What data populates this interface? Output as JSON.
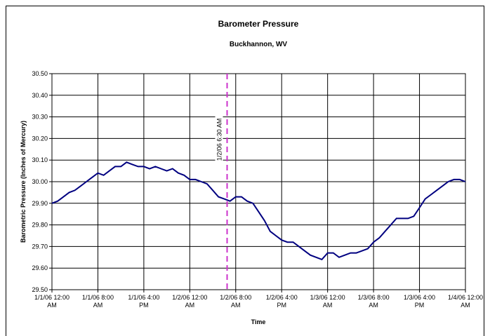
{
  "chart_data": {
    "type": "line",
    "title": "Barometer Pressure",
    "subtitle": "Buckhannon, WV",
    "x_label": "Time",
    "y_label": "Barometric Pressure (Inches of Mercury)",
    "grid": true,
    "xlim": [
      "2006-01-01T00:00",
      "2006-01-04T00:00"
    ],
    "xticks": [
      {
        "value": "2006-01-01T00:00",
        "label": "1/1/06 12:00 AM"
      },
      {
        "value": "2006-01-01T08:00",
        "label": "1/1/06 8:00 AM"
      },
      {
        "value": "2006-01-01T16:00",
        "label": "1/1/06 4:00 PM"
      },
      {
        "value": "2006-01-02T00:00",
        "label": "1/2/06 12:00 AM"
      },
      {
        "value": "2006-01-02T08:00",
        "label": "1/2/06 8:00 AM"
      },
      {
        "value": "2006-01-02T16:00",
        "label": "1/2/06 4:00 PM"
      },
      {
        "value": "2006-01-03T00:00",
        "label": "1/3/06 12:00 AM"
      },
      {
        "value": "2006-01-03T08:00",
        "label": "1/3/06 8:00 AM"
      },
      {
        "value": "2006-01-03T16:00",
        "label": "1/3/06 4:00 PM"
      },
      {
        "value": "2006-01-04T00:00",
        "label": "1/4/06 12:00 AM"
      }
    ],
    "ylim": [
      29.5,
      30.5
    ],
    "yticks": [
      {
        "value": 29.5,
        "label": "29.50"
      },
      {
        "value": 29.6,
        "label": "29.60"
      },
      {
        "value": 29.7,
        "label": "29.70"
      },
      {
        "value": 29.8,
        "label": "29.80"
      },
      {
        "value": 29.9,
        "label": "29.90"
      },
      {
        "value": 30.0,
        "label": "30.00"
      },
      {
        "value": 30.1,
        "label": "30.10"
      },
      {
        "value": 30.2,
        "label": "30.20"
      },
      {
        "value": 30.3,
        "label": "30.30"
      },
      {
        "value": 30.4,
        "label": "30.40"
      },
      {
        "value": 30.5,
        "label": "30.50"
      }
    ],
    "annotation": {
      "text": "1/2/06 6:30 AM",
      "x": "2006-01-02T06:30",
      "color": "#cc33cc"
    },
    "x": [
      "2006-01-01T00:00",
      "2006-01-01T01:00",
      "2006-01-01T02:00",
      "2006-01-01T03:00",
      "2006-01-01T04:00",
      "2006-01-01T05:00",
      "2006-01-01T06:00",
      "2006-01-01T07:00",
      "2006-01-01T08:00",
      "2006-01-01T09:00",
      "2006-01-01T10:00",
      "2006-01-01T11:00",
      "2006-01-01T12:00",
      "2006-01-01T13:00",
      "2006-01-01T14:00",
      "2006-01-01T15:00",
      "2006-01-01T16:00",
      "2006-01-01T17:00",
      "2006-01-01T18:00",
      "2006-01-01T19:00",
      "2006-01-01T20:00",
      "2006-01-01T21:00",
      "2006-01-01T22:00",
      "2006-01-01T23:00",
      "2006-01-02T00:00",
      "2006-01-02T01:00",
      "2006-01-02T02:00",
      "2006-01-02T03:00",
      "2006-01-02T04:00",
      "2006-01-02T05:00",
      "2006-01-02T06:00",
      "2006-01-02T07:00",
      "2006-01-02T08:00",
      "2006-01-02T09:00",
      "2006-01-02T10:00",
      "2006-01-02T11:00",
      "2006-01-02T12:00",
      "2006-01-02T13:00",
      "2006-01-02T14:00",
      "2006-01-02T15:00",
      "2006-01-02T16:00",
      "2006-01-02T17:00",
      "2006-01-02T18:00",
      "2006-01-02T19:00",
      "2006-01-02T20:00",
      "2006-01-02T21:00",
      "2006-01-02T22:00",
      "2006-01-02T23:00",
      "2006-01-03T00:00",
      "2006-01-03T01:00",
      "2006-01-03T02:00",
      "2006-01-03T03:00",
      "2006-01-03T04:00",
      "2006-01-03T05:00",
      "2006-01-03T06:00",
      "2006-01-03T07:00",
      "2006-01-03T08:00",
      "2006-01-03T09:00",
      "2006-01-03T10:00",
      "2006-01-03T11:00",
      "2006-01-03T12:00",
      "2006-01-03T13:00",
      "2006-01-03T14:00",
      "2006-01-03T15:00",
      "2006-01-03T16:00",
      "2006-01-03T17:00",
      "2006-01-03T18:00",
      "2006-01-03T19:00",
      "2006-01-03T20:00",
      "2006-01-03T21:00",
      "2006-01-03T22:00",
      "2006-01-03T23:00",
      "2006-01-04T00:00"
    ],
    "series": [
      {
        "color": "#000080",
        "values": [
          29.9,
          29.91,
          29.93,
          29.95,
          29.96,
          29.98,
          30.0,
          30.02,
          30.04,
          30.03,
          30.05,
          30.07,
          30.07,
          30.09,
          30.08,
          30.07,
          30.07,
          30.06,
          30.07,
          30.06,
          30.05,
          30.06,
          30.04,
          30.03,
          30.01,
          30.01,
          30.0,
          29.99,
          29.96,
          29.93,
          29.92,
          29.91,
          29.93,
          29.93,
          29.91,
          29.9,
          29.86,
          29.82,
          29.77,
          29.75,
          29.73,
          29.72,
          29.72,
          29.7,
          29.68,
          29.66,
          29.65,
          29.64,
          29.67,
          29.67,
          29.65,
          29.66,
          29.67,
          29.67,
          29.68,
          29.69,
          29.72,
          29.74,
          29.77,
          29.8,
          29.83,
          29.83,
          29.83,
          29.84,
          29.88,
          29.92,
          29.94,
          29.96,
          29.98,
          30.0,
          30.01,
          30.01,
          30.0
        ]
      }
    ]
  }
}
